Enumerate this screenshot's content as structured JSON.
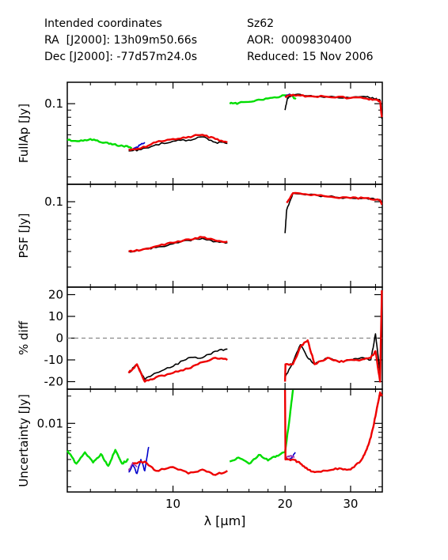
{
  "header": {
    "left": [
      "Intended coordinates",
      "RA  [J2000]: 13h09m50.66s",
      "Dec [J2000]: -77d57m24.0s"
    ],
    "right": [
      "Sz62",
      "AOR:  0009830400",
      "Reduced: 15 Nov 2006"
    ]
  },
  "chart_data": [
    {
      "type": "line",
      "panel": "fullap",
      "ylabel": "FullAp [Jy]",
      "ylog": true,
      "ylim": [
        0.028,
        0.135
      ],
      "yticks": [
        {
          "v": 0.1,
          "label": "0.1"
        }
      ],
      "series": [
        {
          "color": "#00dd00",
          "x": [
            5.2,
            5.6,
            6.0,
            6.4,
            6.8,
            7.2,
            7.6,
            7.75
          ],
          "y": [
            0.055,
            0.054,
            0.056,
            0.053,
            0.052,
            0.05,
            0.049,
            0.048
          ]
        },
        {
          "color": "#0000cc",
          "x": [
            7.6,
            7.8,
            8.0,
            8.2,
            8.4
          ],
          "y": [
            0.047,
            0.047,
            0.049,
            0.051,
            0.053
          ]
        },
        {
          "color": "#000000",
          "x": [
            7.6,
            8.2,
            9.0,
            10.0,
            11.0,
            12.0,
            13.0,
            14.0
          ],
          "y": [
            0.046,
            0.047,
            0.051,
            0.054,
            0.055,
            0.058,
            0.053,
            0.052
          ]
        },
        {
          "color": "#ee0000",
          "x": [
            7.6,
            8.2,
            9.0,
            10.0,
            11.0,
            12.0,
            13.0,
            14.0
          ],
          "y": [
            0.047,
            0.048,
            0.053,
            0.056,
            0.058,
            0.06,
            0.056,
            0.053
          ]
        },
        {
          "color": "#00dd00",
          "x": [
            14.2,
            15.0,
            16.5,
            18.0,
            19.5,
            20.6,
            21.4
          ],
          "y": [
            0.1,
            0.101,
            0.104,
            0.109,
            0.113,
            0.115,
            0.108
          ]
        },
        {
          "color": "#0000cc",
          "x": [
            20.0,
            20.5,
            21.0
          ],
          "y": [
            0.112,
            0.116,
            0.113
          ]
        },
        {
          "color": "#000000",
          "x": [
            20.0,
            20.3,
            21.0,
            23.0,
            26.0,
            30.0,
            33.0,
            35.0,
            36.0,
            36.4
          ],
          "y": [
            0.09,
            0.11,
            0.116,
            0.114,
            0.112,
            0.11,
            0.112,
            0.108,
            0.106,
            0.078
          ]
        },
        {
          "color": "#ee0000",
          "x": [
            20.0,
            21.0,
            23.0,
            26.0,
            30.0,
            33.0,
            35.0,
            36.0,
            36.4
          ],
          "y": [
            0.112,
            0.116,
            0.113,
            0.112,
            0.11,
            0.109,
            0.107,
            0.104,
            0.08
          ]
        }
      ]
    },
    {
      "type": "line",
      "panel": "psf",
      "ylabel": "PSF [Jy]",
      "ylog": true,
      "ylim": [
        0.022,
        0.13
      ],
      "yticks": [
        {
          "v": 0.1,
          "label": "0.1"
        }
      ],
      "series": [
        {
          "color": "#000000",
          "x": [
            7.6,
            8.2,
            9.0,
            10.0,
            11.0,
            12.0,
            13.0,
            14.0
          ],
          "y": [
            0.04,
            0.041,
            0.043,
            0.046,
            0.049,
            0.051,
            0.048,
            0.047
          ]
        },
        {
          "color": "#ee0000",
          "x": [
            7.6,
            8.2,
            9.0,
            10.0,
            11.0,
            12.0,
            13.0,
            14.0
          ],
          "y": [
            0.04,
            0.041,
            0.044,
            0.047,
            0.05,
            0.052,
            0.049,
            0.048
          ]
        },
        {
          "color": "#000000",
          "x": [
            20.0,
            20.2,
            21.0,
            23.0,
            26.0,
            30.0,
            33.0,
            36.0,
            36.4
          ],
          "y": [
            0.056,
            0.086,
            0.117,
            0.114,
            0.11,
            0.107,
            0.107,
            0.104,
            0.095
          ]
        },
        {
          "color": "#ee0000",
          "x": [
            20.2,
            21.0,
            23.0,
            26.0,
            30.0,
            33.0,
            36.0,
            36.4
          ],
          "y": [
            0.098,
            0.117,
            0.114,
            0.11,
            0.107,
            0.107,
            0.102,
            0.096
          ]
        }
      ]
    },
    {
      "type": "line",
      "panel": "pdiff",
      "ylabel": "% diff",
      "ylog": false,
      "ylim": [
        -22,
        22
      ],
      "yticks": [
        {
          "v": 20,
          "label": "20"
        },
        {
          "v": 10,
          "label": "10"
        },
        {
          "v": 0,
          "label": "0"
        },
        {
          "v": -10,
          "label": "-10"
        },
        {
          "v": -20,
          "label": "-20"
        }
      ],
      "zeroline": 0,
      "series": [
        {
          "color": "#000000",
          "x": [
            7.6,
            8.0,
            8.4,
            9.0,
            10.0,
            11.0,
            12.0,
            13.0,
            14.0
          ],
          "y": [
            -16,
            -12,
            -19,
            -16,
            -13,
            -9,
            -9,
            -6,
            -5
          ]
        },
        {
          "color": "#ee0000",
          "x": [
            7.6,
            8.0,
            8.4,
            9.0,
            10.0,
            11.0,
            12.0,
            13.0,
            14.0
          ],
          "y": [
            -16,
            -12,
            -20,
            -18,
            -16,
            -14,
            -11,
            -9,
            -10
          ]
        },
        {
          "color": "#000000",
          "x": [
            20.0,
            21.0,
            22.0,
            23.0,
            24.0,
            26.0,
            28.0,
            30.0,
            32.0,
            34.0,
            35.0,
            36.0
          ],
          "y": [
            -18,
            -11,
            -3,
            -9,
            -12,
            -9,
            -11,
            -10,
            -9,
            -10,
            2,
            -16
          ]
        },
        {
          "color": "#ee0000",
          "x": [
            20.0,
            20.05,
            21.0,
            22.0,
            23.0,
            24.0,
            26.0,
            28.0,
            30.0,
            32.0,
            34.0,
            35.0,
            36.0,
            36.4
          ],
          "y": [
            -20,
            -12,
            -12,
            -4,
            -1,
            -12,
            -9,
            -11,
            -10,
            -10,
            -9,
            -6,
            -20,
            22
          ]
        }
      ]
    },
    {
      "type": "line",
      "panel": "unc",
      "ylabel": "Uncertainty [Jy]",
      "ylog": true,
      "ylim": [
        0.0019,
        0.022
      ],
      "yticks": [
        {
          "v": 0.01,
          "label": "0.01"
        }
      ],
      "series": [
        {
          "color": "#00dd00",
          "x": [
            5.2,
            5.5,
            5.8,
            6.1,
            6.4,
            6.7,
            7.0,
            7.3,
            7.6
          ],
          "y": [
            0.005,
            0.0036,
            0.0048,
            0.0037,
            0.0046,
            0.0034,
            0.0051,
            0.0036,
            0.004
          ]
        },
        {
          "color": "#0000cc",
          "x": [
            7.6,
            7.8,
            8.0,
            8.2,
            8.4,
            8.6
          ],
          "y": [
            0.0029,
            0.0035,
            0.0028,
            0.004,
            0.003,
            0.0055
          ]
        },
        {
          "color": "#9b30b0",
          "x": [
            7.6,
            7.8,
            8.0
          ],
          "y": [
            0.003,
            0.0037,
            0.0033
          ]
        },
        {
          "color": "#ee0000",
          "x": [
            7.8,
            8.4,
            9.0,
            10.0,
            11.0,
            12.0,
            13.0,
            14.0
          ],
          "y": [
            0.0036,
            0.0038,
            0.003,
            0.0033,
            0.0028,
            0.0031,
            0.0027,
            0.003
          ]
        },
        {
          "color": "#00dd00",
          "x": [
            14.2,
            15.0,
            16.0,
            17.0,
            18.0,
            19.0,
            20.0,
            20.6,
            21.0
          ],
          "y": [
            0.0038,
            0.0042,
            0.0036,
            0.0045,
            0.0039,
            0.0044,
            0.0048,
            0.012,
            0.03
          ]
        },
        {
          "color": "#0000cc",
          "x": [
            20.0,
            20.5,
            21.0,
            21.3
          ],
          "y": [
            0.0042,
            0.004,
            0.0043,
            0.0048
          ]
        },
        {
          "color": "#9b30b0",
          "x": [
            20.0,
            20.6,
            21.2
          ],
          "y": [
            0.0041,
            0.0044,
            0.0042
          ]
        },
        {
          "color": "#ee0000",
          "x": [
            20.0,
            20.05,
            21.0,
            22.0,
            23.0,
            24.0,
            26.0,
            28.0,
            30.0,
            32.0,
            33.0,
            34.0,
            35.0,
            36.0,
            36.4
          ],
          "y": [
            0.03,
            0.004,
            0.004,
            0.0036,
            0.0031,
            0.0029,
            0.003,
            0.0032,
            0.0031,
            0.0039,
            0.005,
            0.007,
            0.012,
            0.022,
            0.02
          ]
        }
      ]
    }
  ],
  "xaxis": {
    "label": "λ [μm]",
    "log": true,
    "xlim": [
      5.2,
      36.5
    ],
    "ticks": [
      {
        "v": 10,
        "label": "10"
      },
      {
        "v": 20,
        "label": "20"
      },
      {
        "v": 30,
        "label": "30"
      }
    ]
  }
}
